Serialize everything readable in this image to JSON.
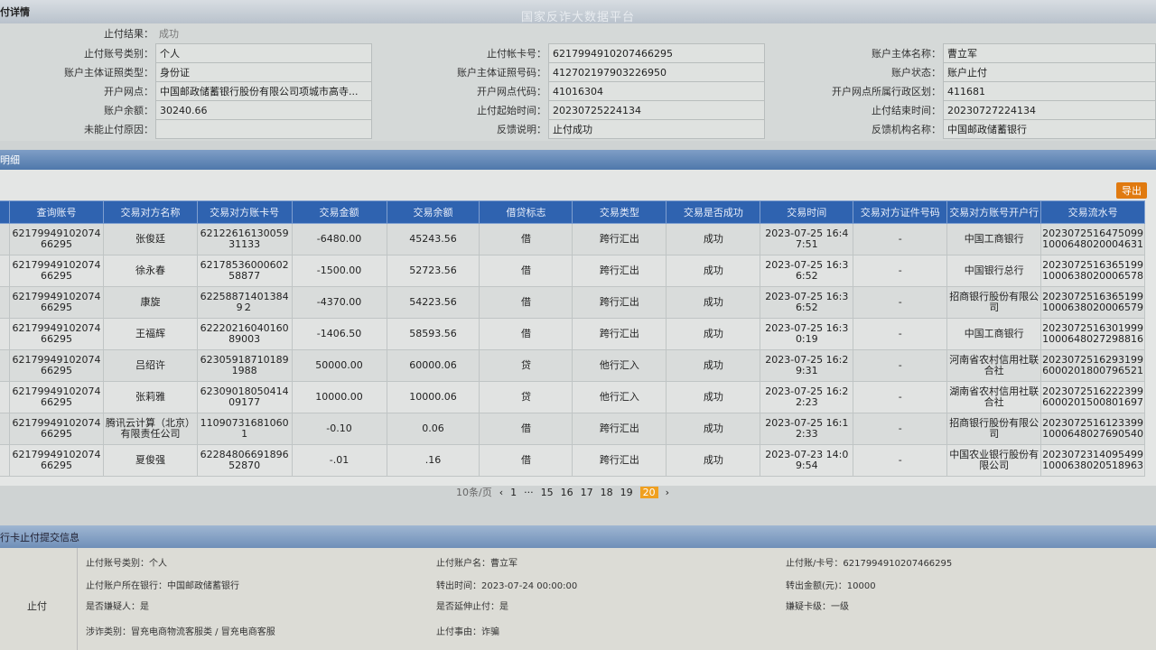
{
  "watermark": "国家反诈大数据平台",
  "detail_title": "付详情",
  "fields": {
    "result_label": "止付结果：",
    "result": "成功",
    "acct_type_label": "止付账号类别：",
    "acct_type": "个人",
    "id_type_label": "账户主体证照类型：",
    "id_type": "身份证",
    "branch_label": "开户网点：",
    "branch": "中国邮政储蓄银行股份有限公司项城市高寺...",
    "balance_label": "账户余额：",
    "balance": "30240.66",
    "fail_reason_label": "未能止付原因：",
    "fail_reason": "",
    "card_label": "止付帐卡号：",
    "card": "6217994910207466295",
    "id_no_label": "账户主体证照号码：",
    "id_no": "412702197903226950",
    "branch_code_label": "开户网点代码：",
    "branch_code": "41016304",
    "start_label": "止付起始时间：",
    "start": "20230725224134",
    "feedback_label": "反馈说明：",
    "feedback": "止付成功",
    "holder_label": "账户主体名称：",
    "holder": "曹立军",
    "status_label": "账户状态：",
    "status": "账户止付",
    "region_label": "开户网点所属行政区划：",
    "region": "411681",
    "end_label": "止付结束时间：",
    "end": "20230727224134",
    "org_label": "反馈机构名称：",
    "org": "中国邮政储蓄银行"
  },
  "detail_section": "明细",
  "export": "导出",
  "table": {
    "headers": [
      "查询账号",
      "交易对方名称",
      "交易对方账卡号",
      "交易金额",
      "交易余额",
      "借贷标志",
      "交易类型",
      "交易是否成功",
      "交易时间",
      "交易对方证件号码",
      "交易对方账号开户行",
      "交易流水号"
    ],
    "rows": [
      [
        "6217994910207466295",
        "张俊廷",
        "6212261613005931133",
        "-6480.00",
        "45243.56",
        "借",
        "跨行汇出",
        "成功",
        "2023-07-25 16:47:51",
        "-",
        "中国工商银行",
        "20230725164750991000648020004631"
      ],
      [
        "6217994910207466295",
        "徐永春",
        "6217853600060258877",
        "-1500.00",
        "52723.56",
        "借",
        "跨行汇出",
        "成功",
        "2023-07-25 16:36:52",
        "-",
        "中国银行总行",
        "20230725163651991000638020006578"
      ],
      [
        "6217994910207466295",
        "康旋",
        "622588714013849２",
        "-4370.00",
        "54223.56",
        "借",
        "跨行汇出",
        "成功",
        "2023-07-25 16:36:52",
        "-",
        "招商银行股份有限公司",
        "20230725163651991000638020006579"
      ],
      [
        "6217994910207466295",
        "王福辉",
        "6222021604016089003",
        "-1406.50",
        "58593.56",
        "借",
        "跨行汇出",
        "成功",
        "2023-07-25 16:30:19",
        "-",
        "中国工商银行",
        "20230725163019991000648027298816"
      ],
      [
        "6217994910207466295",
        "吕绍许",
        "6230591871018919​88",
        "50000.00",
        "60000.06",
        "贷",
        "他行汇入",
        "成功",
        "2023-07-25 16:29:31",
        "-",
        "河南省农村信用社联合社",
        "20230725162931996000201800796521"
      ],
      [
        "6217994910207466295",
        "张莉雅",
        "6230901805041409177",
        "10000.00",
        "10000.06",
        "贷",
        "他行汇入",
        "成功",
        "2023-07-25 16:22:23",
        "-",
        "湖南省农村信用社联合社",
        "20230725162223996000201500801697"
      ],
      [
        "6217994910207466295",
        "腾讯云计算（北京）有限责任公司",
        "110907316810601",
        "-0.10",
        "0.06",
        "借",
        "跨行汇出",
        "成功",
        "2023-07-25 16:12:33",
        "-",
        "招商银行股份有限公司",
        "20230725161233991000648027690540"
      ],
      [
        "6217994910207466295",
        "夏俊强",
        "6228480669189652870",
        "-.01",
        ".16",
        "借",
        "跨行汇出",
        "成功",
        "2023-07-23 14:09:54",
        "-",
        "中国农业银行股份有限公司",
        "20230723140954991000638020518963"
      ]
    ]
  },
  "pager": {
    "size": "10条/页",
    "prev": "‹",
    "first": "1",
    "ellipsis": "···",
    "pages": [
      "15",
      "16",
      "17",
      "18",
      "19"
    ],
    "current": "20",
    "next": "›"
  },
  "submit_section": "行卡止付提交信息",
  "submit": {
    "side": "止付",
    "items": [
      "止付账号类别：个人",
      "止付账户名：曹立军",
      "止付账/卡号：6217994910207466295",
      "止付账户所在银行：中国邮政储蓄银行",
      "转出时间：2023-07-24 00:00:00",
      "转出金额(元)：10000",
      "是否嫌疑人：是",
      "是否延伸止付：是",
      "嫌疑卡级：一级",
      "涉诈类别：冒充电商物流客服类 / 冒充电商客服",
      "止付事由：诈骗"
    ]
  }
}
